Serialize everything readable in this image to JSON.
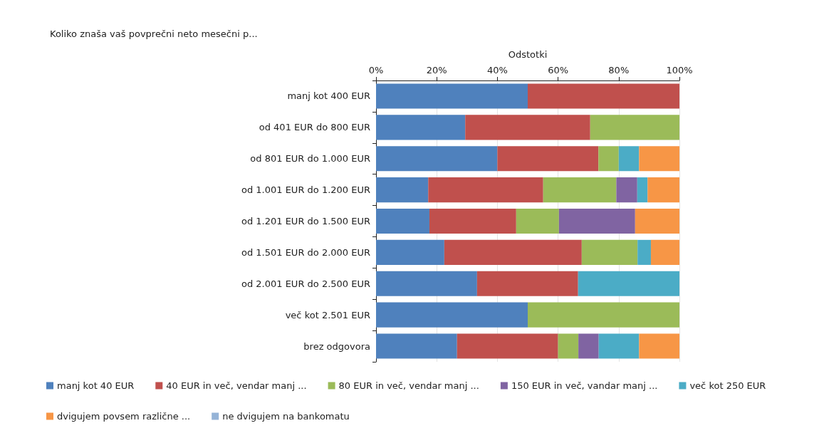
{
  "chart_data": {
    "type": "bar",
    "orientation": "horizontal",
    "stacked": true,
    "title": "Koliko znaša vaš povprečni neto mesečni p...",
    "xlabel": "Odstotki",
    "categories": [
      "manj kot 400 EUR",
      "od 401 EUR do 800 EUR",
      "od 801 EUR do 1.000 EUR",
      "od 1.001 EUR do 1.200 EUR",
      "od 1.201 EUR do 1.500 EUR",
      "od 1.501 EUR do 2.000 EUR",
      "od 2.001 EUR do 2.500 EUR",
      "več kot 2.501 EUR",
      "brez odgovora"
    ],
    "series": [
      {
        "name": "manj kot 40 EUR",
        "color": "#4f81bd",
        "values": [
          50,
          29.4,
          40,
          17.2,
          17.6,
          22.5,
          33.3,
          50,
          26.7
        ]
      },
      {
        "name": "40 EUR in več, vendar manj ...",
        "color": "#c0504d",
        "values": [
          50,
          41.2,
          33.3,
          37.9,
          28.6,
          45.3,
          33.3,
          0,
          33.3
        ]
      },
      {
        "name": "80 EUR in več, vendar manj ...",
        "color": "#9bbb59",
        "values": [
          0,
          29.4,
          6.7,
          24.1,
          14.1,
          18.4,
          0,
          50,
          6.7
        ]
      },
      {
        "name": "150 EUR in več, vandar manj ...",
        "color": "#8064a2",
        "values": [
          0,
          0,
          0,
          6.9,
          25.1,
          0,
          0,
          0,
          6.7
        ]
      },
      {
        "name": "več kot 250 EUR",
        "color": "#4bacc6",
        "values": [
          0,
          0,
          6.7,
          3.4,
          0,
          4.4,
          33.4,
          0,
          13.3
        ]
      },
      {
        "name": "dvigujem povsem različne ...",
        "color": "#f79646",
        "values": [
          0,
          0,
          13.3,
          10.5,
          14.6,
          9.4,
          0,
          0,
          13.3
        ]
      },
      {
        "name": "ne dvigujem na bankomatu",
        "color": "#95b3d7",
        "values": [
          0,
          0,
          0,
          0,
          0,
          0,
          0,
          0,
          0
        ]
      }
    ],
    "xlim": [
      0,
      100
    ],
    "xticks": [
      {
        "value": 0,
        "label": "0%"
      },
      {
        "value": 20,
        "label": "20%"
      },
      {
        "value": 40,
        "label": "40%"
      },
      {
        "value": 60,
        "label": "60%"
      },
      {
        "value": 80,
        "label": "80%"
      },
      {
        "value": 100,
        "label": "100%"
      }
    ],
    "grid": "x",
    "legend": "bottom"
  }
}
